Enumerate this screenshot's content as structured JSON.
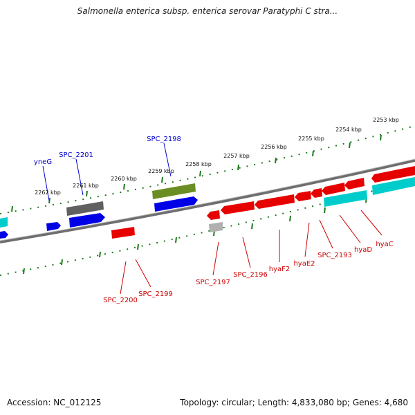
{
  "title": "Salmonella enterica subsp. enterica serovar Paratyphi C stra...",
  "footer": {
    "accession_label": "Accession:",
    "accession": "NC_012125",
    "topology_label": "Topology:",
    "topology": "circular",
    "length_label": "Length:",
    "length": "4,833,080 bp",
    "genes_label": "Genes:",
    "genes": "4,680"
  },
  "colors": {
    "backbone": "#808080",
    "ticks": "#1a7a1a",
    "forward_label": "#0000cc",
    "reverse_label": "#cc0000",
    "red_gene": "#e60000",
    "blue_gene": "#0000e6",
    "cyan_gene": "#00cccc",
    "gray_gene": "#606060",
    "olive_gene": "#6b8e23",
    "light_gray_gene": "#b0b0b0"
  },
  "tick_labels": [
    {
      "text": "2253 kbp"
    },
    {
      "text": "2254 kbp"
    },
    {
      "text": "2255 kbp"
    },
    {
      "text": "2256 kbp"
    },
    {
      "text": "2257 kbp"
    },
    {
      "text": "2258 kbp"
    },
    {
      "text": "2259 kbp"
    },
    {
      "text": "2260 kbp"
    },
    {
      "text": "2261 kbp"
    },
    {
      "text": "2262 kbp"
    }
  ],
  "forward_labels": [
    {
      "text": "yneG"
    },
    {
      "text": "SPC_2201"
    },
    {
      "text": "SPC_2198"
    }
  ],
  "reverse_labels": [
    {
      "text": "SPC_2200"
    },
    {
      "text": "SPC_2199"
    },
    {
      "text": "SPC_2197"
    },
    {
      "text": "SPC_2196"
    },
    {
      "text": "hyaF2"
    },
    {
      "text": "hyaE2"
    },
    {
      "text": "SPC_2193"
    },
    {
      "text": "hyaD"
    },
    {
      "text": "hyaC"
    }
  ]
}
